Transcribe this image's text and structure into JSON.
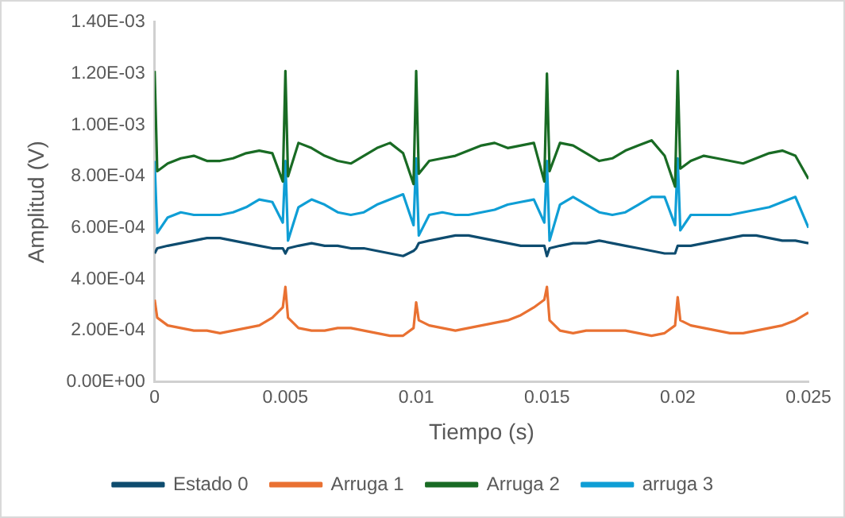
{
  "chart_data": {
    "type": "line",
    "xlabel": "Tiempo (s)",
    "ylabel": "Amplitud (V)",
    "marker": "none",
    "grid": false,
    "legend": "bottom",
    "xlim": [
      0,
      0.025
    ],
    "xticks": [
      0,
      0.005,
      0.01,
      0.015,
      0.02,
      0.025
    ],
    "ylim": [
      0,
      0.0014
    ],
    "yticks": [
      {
        "value": 0,
        "label": "0.00E+00"
      },
      {
        "value": 0.0002,
        "label": "2.00E-04"
      },
      {
        "value": 0.0004,
        "label": "4.00E-04"
      },
      {
        "value": 0.0006,
        "label": "6.00E-04"
      },
      {
        "value": 0.0008,
        "label": "8.00E-04"
      },
      {
        "value": 0.001,
        "label": "1.00E-03"
      },
      {
        "value": 0.0012,
        "label": "1.20E-03"
      },
      {
        "value": 0.0014,
        "label": "1.40E-03"
      }
    ],
    "x": [
      0,
      0.0001,
      0.0005,
      0.001,
      0.0015,
      0.002,
      0.0025,
      0.003,
      0.0035,
      0.004,
      0.0045,
      0.0049,
      0.005,
      0.0051,
      0.0055,
      0.006,
      0.0065,
      0.007,
      0.0075,
      0.008,
      0.0085,
      0.009,
      0.0095,
      0.0099,
      0.01,
      0.0101,
      0.0105,
      0.011,
      0.0115,
      0.012,
      0.0125,
      0.013,
      0.0135,
      0.014,
      0.0145,
      0.0149,
      0.015,
      0.0151,
      0.0155,
      0.016,
      0.0165,
      0.017,
      0.0175,
      0.018,
      0.0185,
      0.019,
      0.0195,
      0.0199,
      0.02,
      0.0201,
      0.0205,
      0.021,
      0.0215,
      0.022,
      0.0225,
      0.023,
      0.0235,
      0.024,
      0.0245,
      0.025
    ],
    "series": [
      {
        "name": "Estado 0",
        "color": "#0e4c6f",
        "values": [
          0.0005,
          0.00052,
          0.00053,
          0.00054,
          0.00055,
          0.00056,
          0.00056,
          0.00055,
          0.00054,
          0.00053,
          0.00052,
          0.00052,
          0.0005,
          0.00052,
          0.00053,
          0.00054,
          0.00053,
          0.00053,
          0.00052,
          0.00052,
          0.00051,
          0.0005,
          0.00049,
          0.00051,
          0.00052,
          0.00054,
          0.00055,
          0.00056,
          0.00057,
          0.00057,
          0.00056,
          0.00055,
          0.00054,
          0.00053,
          0.00053,
          0.00053,
          0.00049,
          0.00052,
          0.00053,
          0.00054,
          0.00054,
          0.00055,
          0.00054,
          0.00053,
          0.00052,
          0.00051,
          0.0005,
          0.0005,
          0.00053,
          0.00053,
          0.00053,
          0.00054,
          0.00055,
          0.00056,
          0.00057,
          0.00057,
          0.00056,
          0.00055,
          0.00055,
          0.00054
        ]
      },
      {
        "name": "Arruga 1",
        "color": "#e97132",
        "values": [
          0.00032,
          0.00025,
          0.00022,
          0.00021,
          0.0002,
          0.0002,
          0.00019,
          0.0002,
          0.00021,
          0.00022,
          0.00025,
          0.00029,
          0.00037,
          0.00025,
          0.00021,
          0.0002,
          0.0002,
          0.00021,
          0.00021,
          0.0002,
          0.00019,
          0.00018,
          0.00018,
          0.00021,
          0.00031,
          0.00024,
          0.00022,
          0.00021,
          0.0002,
          0.00021,
          0.00022,
          0.00023,
          0.00024,
          0.00026,
          0.00029,
          0.00032,
          0.00037,
          0.00024,
          0.0002,
          0.00019,
          0.0002,
          0.0002,
          0.0002,
          0.0002,
          0.00019,
          0.00018,
          0.00019,
          0.00022,
          0.00033,
          0.00024,
          0.00022,
          0.00021,
          0.0002,
          0.00019,
          0.00019,
          0.0002,
          0.00021,
          0.00022,
          0.00024,
          0.00027
        ]
      },
      {
        "name": "Arruga 2",
        "color": "#196b24",
        "values": [
          0.00121,
          0.00082,
          0.00085,
          0.00087,
          0.00088,
          0.00086,
          0.00086,
          0.00087,
          0.00089,
          0.0009,
          0.00089,
          0.00078,
          0.00121,
          0.0008,
          0.00093,
          0.00091,
          0.00088,
          0.00086,
          0.00085,
          0.00088,
          0.00091,
          0.00093,
          0.00089,
          0.00077,
          0.00121,
          0.00081,
          0.00086,
          0.00087,
          0.00088,
          0.0009,
          0.00092,
          0.00093,
          0.00091,
          0.00092,
          0.00093,
          0.00078,
          0.0012,
          0.00082,
          0.00093,
          0.00092,
          0.00089,
          0.00086,
          0.00087,
          0.0009,
          0.00092,
          0.00094,
          0.00088,
          0.00076,
          0.00121,
          0.00083,
          0.00086,
          0.00088,
          0.00087,
          0.00086,
          0.00085,
          0.00087,
          0.00089,
          0.0009,
          0.00088,
          0.00079
        ]
      },
      {
        "name": "arruga 3",
        "color": "#0f9ed5",
        "values": [
          0.00086,
          0.00058,
          0.00064,
          0.00066,
          0.00065,
          0.00065,
          0.00065,
          0.00066,
          0.00068,
          0.00071,
          0.0007,
          0.00062,
          0.00086,
          0.00055,
          0.00068,
          0.00071,
          0.00069,
          0.00066,
          0.00065,
          0.00066,
          0.00069,
          0.00071,
          0.00073,
          0.00061,
          0.00087,
          0.00057,
          0.00065,
          0.00066,
          0.00065,
          0.00065,
          0.00066,
          0.00067,
          0.00069,
          0.0007,
          0.00071,
          0.00062,
          0.00086,
          0.00055,
          0.00069,
          0.00072,
          0.00069,
          0.00066,
          0.00065,
          0.00066,
          0.00069,
          0.00072,
          0.00072,
          0.00061,
          0.00087,
          0.00059,
          0.00065,
          0.00065,
          0.00065,
          0.00065,
          0.00066,
          0.00067,
          0.00068,
          0.0007,
          0.00072,
          0.0006
        ]
      }
    ]
  }
}
